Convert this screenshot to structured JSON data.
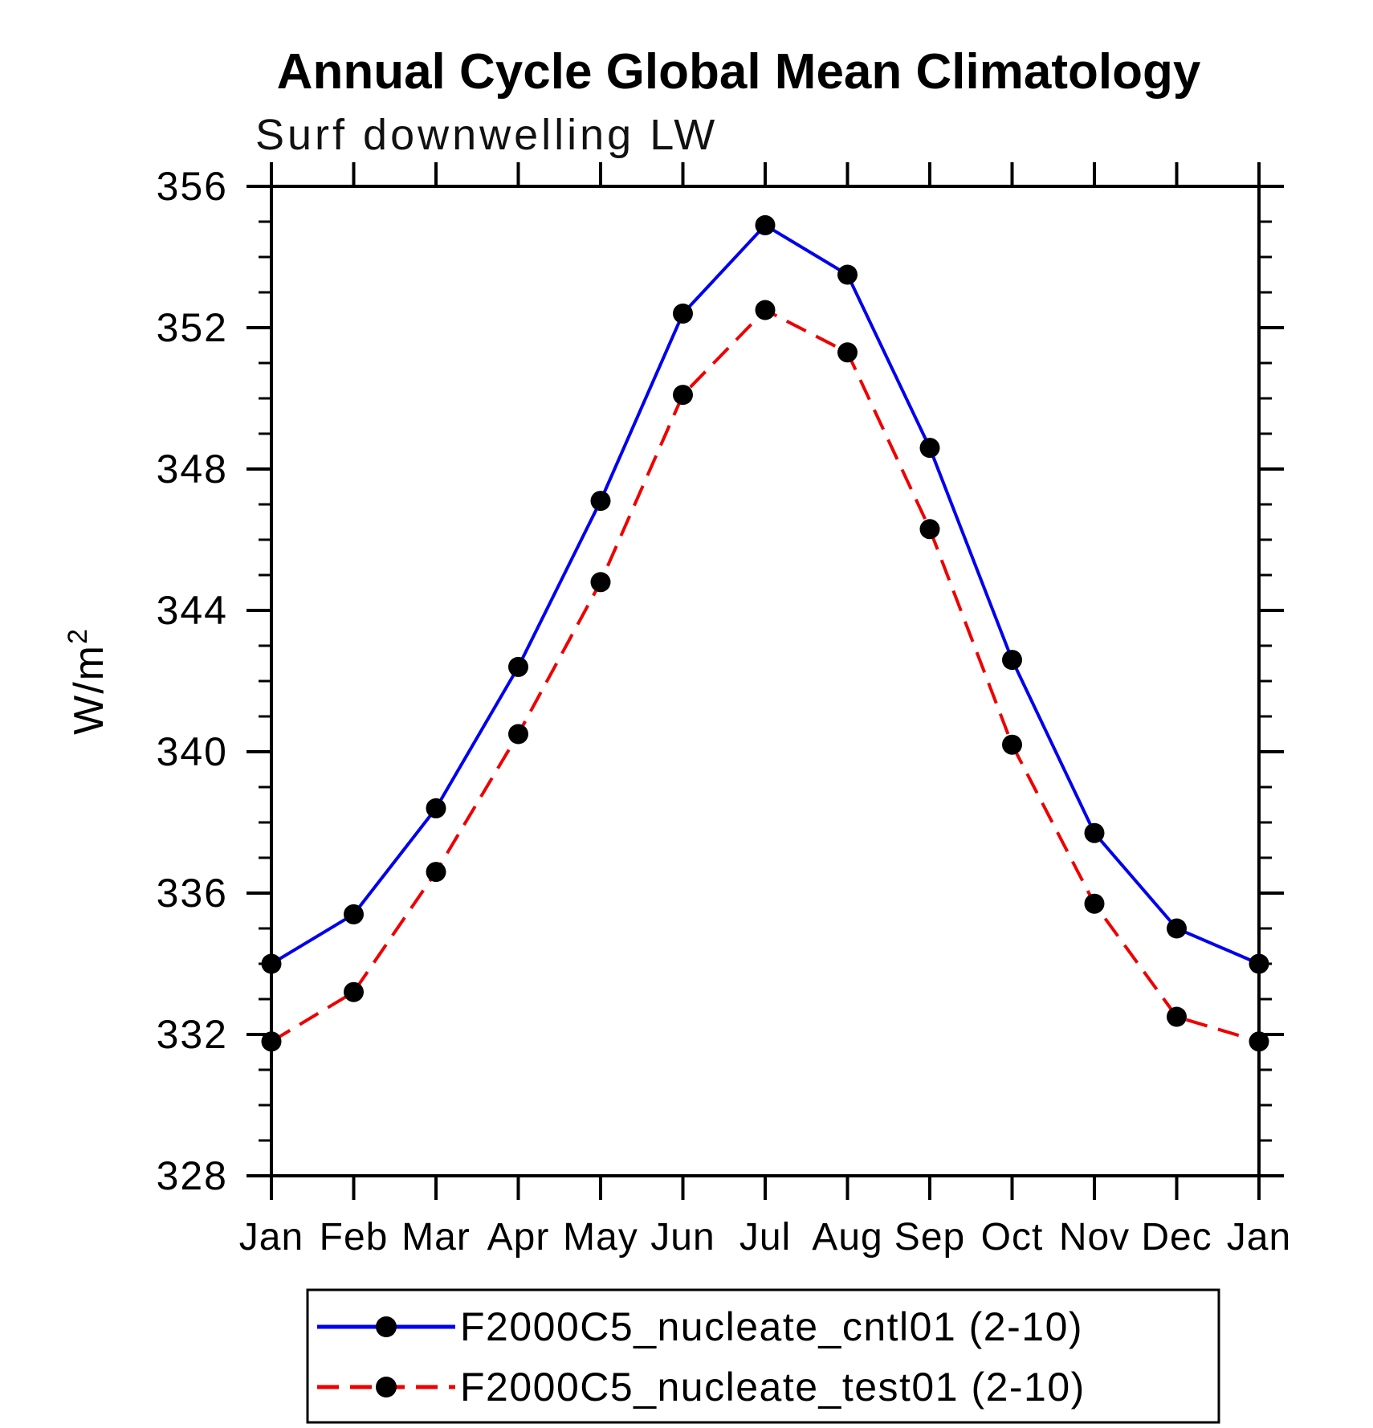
{
  "header": {
    "title": "Annual Cycle Global Mean Climatology",
    "subtitle": "Surf downwelling LW"
  },
  "axes": {
    "y_label_base": "W/m",
    "y_label_exponent": "2",
    "y_unit": "W/m^2",
    "ylim": [
      328,
      356
    ],
    "y_major_ticks": [
      328,
      332,
      336,
      340,
      344,
      348,
      352,
      356
    ],
    "y_minor_step": 1,
    "x_labels": [
      "Jan",
      "Feb",
      "Mar",
      "Apr",
      "May",
      "Jun",
      "Jul",
      "Aug",
      "Sep",
      "Oct",
      "Nov",
      "Dec",
      "Jan"
    ]
  },
  "legend": {
    "entries": [
      {
        "label": "F2000C5_nucleate_cntl01 (2-10)",
        "color": "#0000ee",
        "line_style": "solid",
        "marker": "filled-circle",
        "marker_color": "#000000"
      },
      {
        "label": "F2000C5_nucleate_test01 (2-10)",
        "color": "#ee0000",
        "line_style": "dashed",
        "marker": "filled-circle",
        "marker_color": "#000000"
      }
    ]
  },
  "chart_data": {
    "type": "line",
    "title": "Annual Cycle Global Mean Climatology",
    "subtitle": "Surf downwelling LW",
    "xlabel": "",
    "ylabel": "W/m^2",
    "categories": [
      "Jan",
      "Feb",
      "Mar",
      "Apr",
      "May",
      "Jun",
      "Jul",
      "Aug",
      "Sep",
      "Oct",
      "Nov",
      "Dec",
      "Jan"
    ],
    "series": [
      {
        "name": "F2000C5_nucleate_cntl01 (2-10)",
        "color": "#0000ee",
        "line_style": "solid",
        "marker": "filled-circle",
        "values": [
          334.0,
          335.4,
          338.4,
          342.4,
          347.1,
          352.4,
          354.9,
          353.5,
          348.6,
          342.6,
          337.7,
          335.0,
          334.0
        ]
      },
      {
        "name": "F2000C5_nucleate_test01 (2-10)",
        "color": "#ee0000",
        "line_style": "dashed",
        "marker": "filled-circle",
        "values": [
          331.8,
          333.2,
          336.6,
          340.5,
          344.8,
          350.1,
          352.5,
          351.3,
          346.3,
          340.2,
          335.7,
          332.5,
          331.8
        ]
      }
    ],
    "ylim": [
      328,
      356
    ],
    "y_tick_step": 4,
    "y_minor_tick_step": 1,
    "grid": false,
    "legend_position": "bottom-box"
  }
}
